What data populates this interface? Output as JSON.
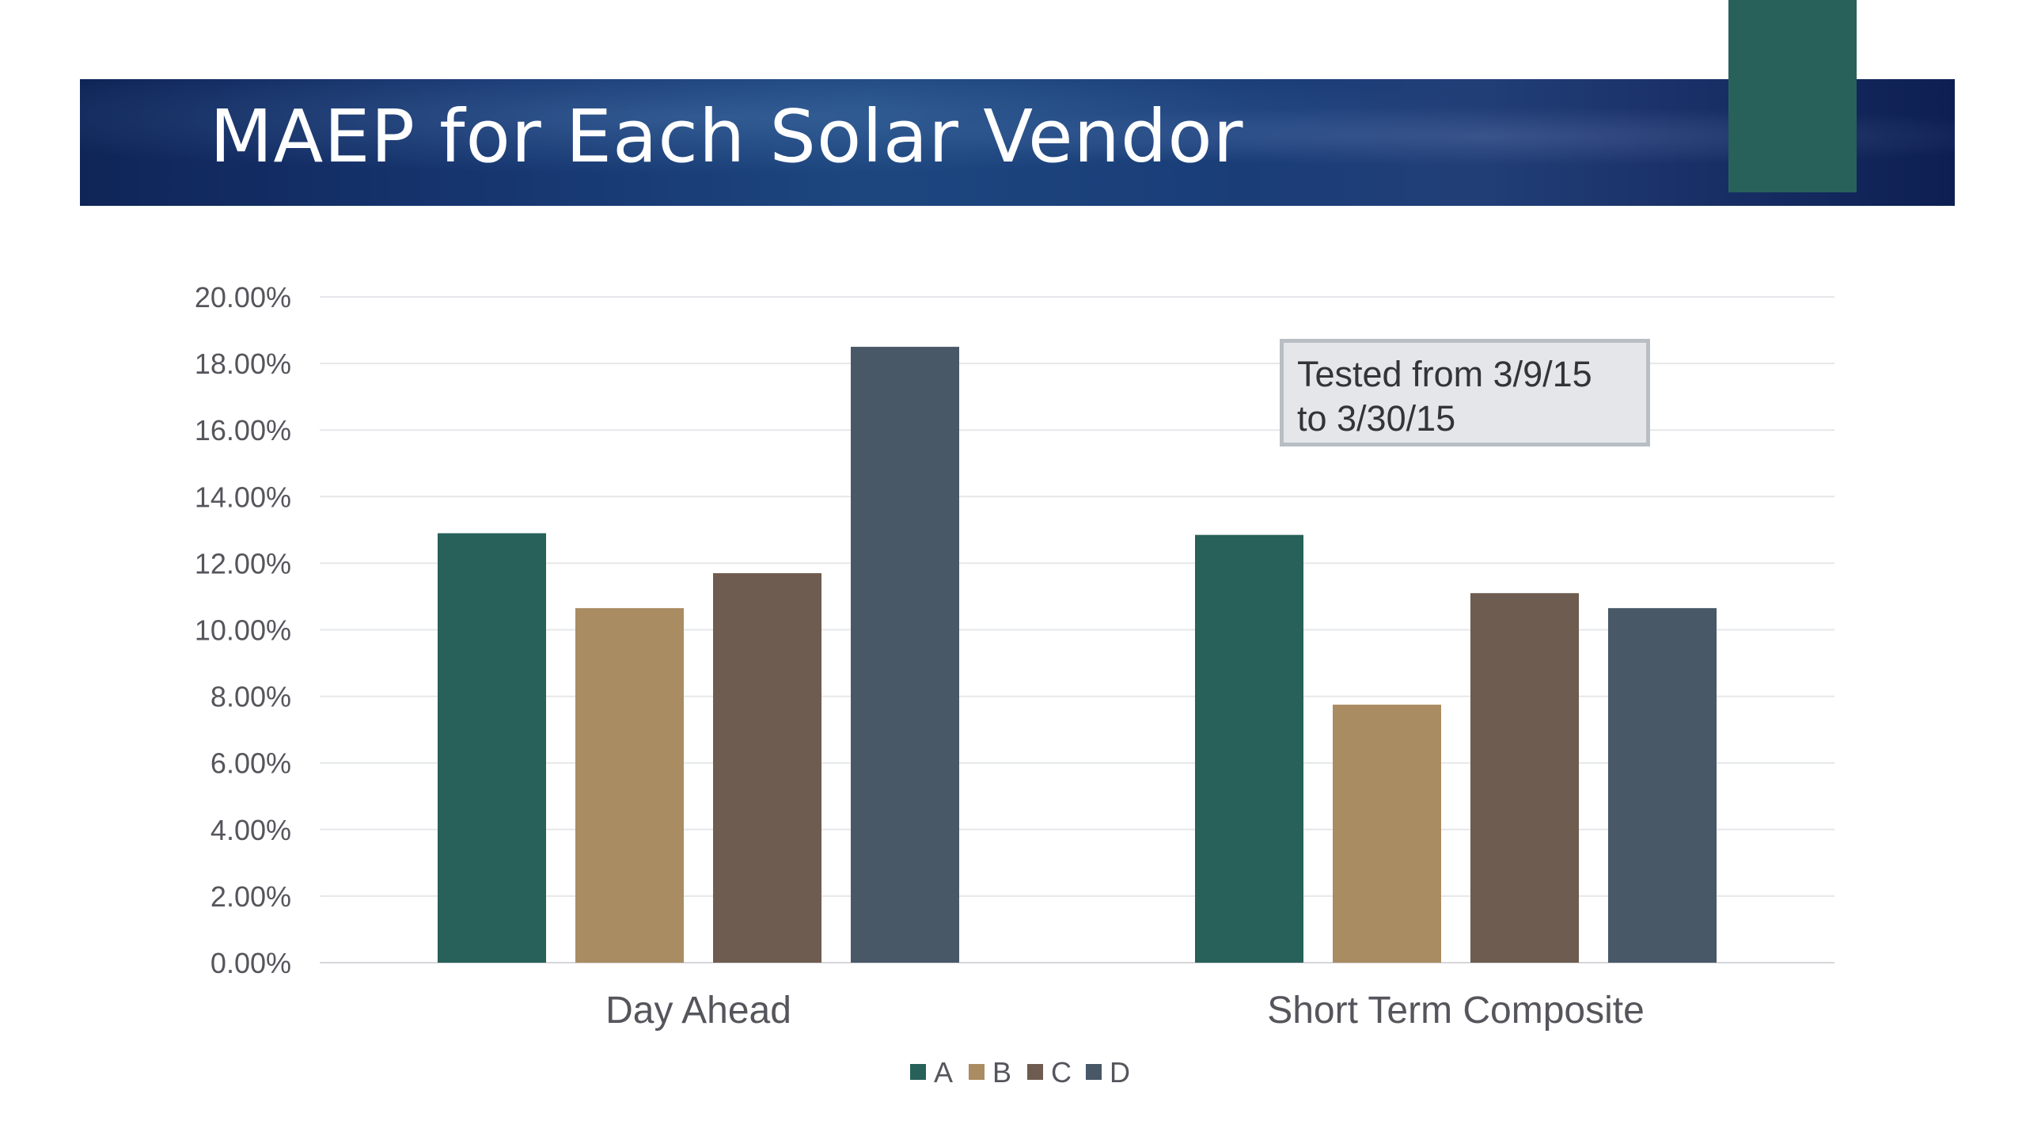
{
  "slide": {
    "title": "MAEP for Each Solar Vendor",
    "annotation": "Tested from 3/9/15\nto 3/30/15",
    "colors": {
      "banner": "#16346e",
      "accent": "#28605a"
    }
  },
  "chart_data": {
    "type": "bar",
    "title": "",
    "xlabel": "",
    "ylabel": "",
    "categories": [
      "Day Ahead",
      "Short Term Composite"
    ],
    "series": [
      {
        "name": "A",
        "color": "#28605a",
        "values": [
          12.9,
          12.85
        ]
      },
      {
        "name": "B",
        "color": "#aa8c62",
        "values": [
          10.65,
          7.75
        ]
      },
      {
        "name": "C",
        "color": "#6e5c50",
        "values": [
          11.7,
          11.1
        ]
      },
      {
        "name": "D",
        "color": "#485867",
        "values": [
          18.5,
          10.65
        ]
      }
    ],
    "ylim": [
      0,
      20
    ],
    "yticks": [
      "0.00%",
      "2.00%",
      "4.00%",
      "6.00%",
      "8.00%",
      "10.00%",
      "12.00%",
      "14.00%",
      "16.00%",
      "18.00%",
      "20.00%"
    ],
    "grid": true,
    "legend_position": "bottom"
  }
}
